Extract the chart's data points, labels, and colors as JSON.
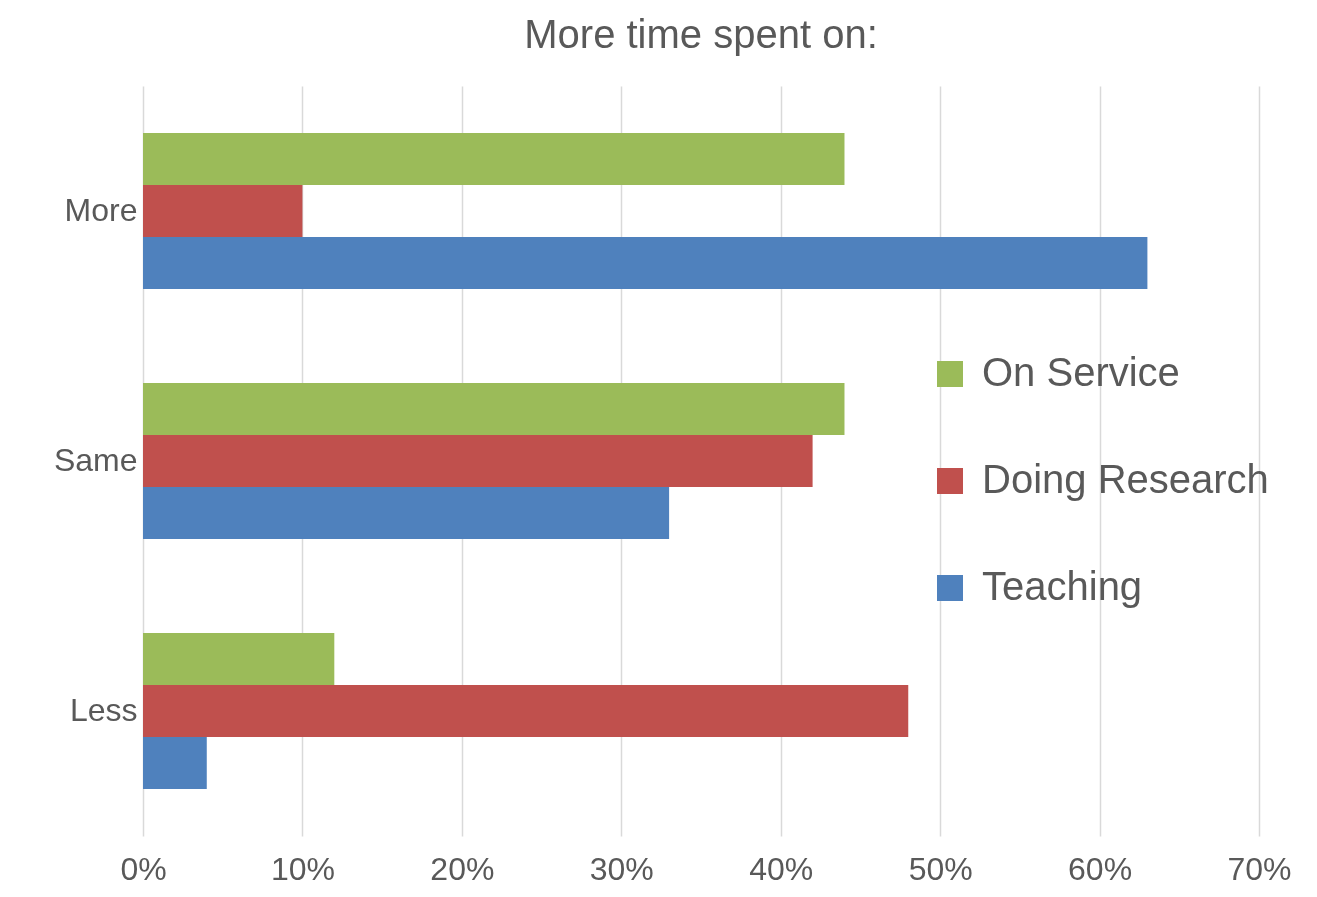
{
  "chart_data": {
    "type": "bar",
    "orientation": "horizontal",
    "title": "More time spent on:",
    "categories": [
      "More",
      "Same",
      "Less"
    ],
    "series": [
      {
        "name": "On Service",
        "color": "#9bbb59",
        "values": [
          44,
          44,
          12
        ]
      },
      {
        "name": "Doing Research",
        "color": "#c0504d",
        "values": [
          10,
          42,
          48
        ]
      },
      {
        "name": "Teaching",
        "color": "#4f81bd",
        "values": [
          63,
          33,
          4
        ]
      }
    ],
    "xlim": [
      0,
      70
    ],
    "xticks": [
      {
        "value": 0,
        "label": "0%"
      },
      {
        "value": 10,
        "label": "10%"
      },
      {
        "value": 20,
        "label": "20%"
      },
      {
        "value": 30,
        "label": "30%"
      },
      {
        "value": 40,
        "label": "40%"
      },
      {
        "value": 50,
        "label": "50%"
      },
      {
        "value": 60,
        "label": "60%"
      },
      {
        "value": 70,
        "label": "70%"
      }
    ],
    "grid": "x",
    "legend": "right"
  }
}
